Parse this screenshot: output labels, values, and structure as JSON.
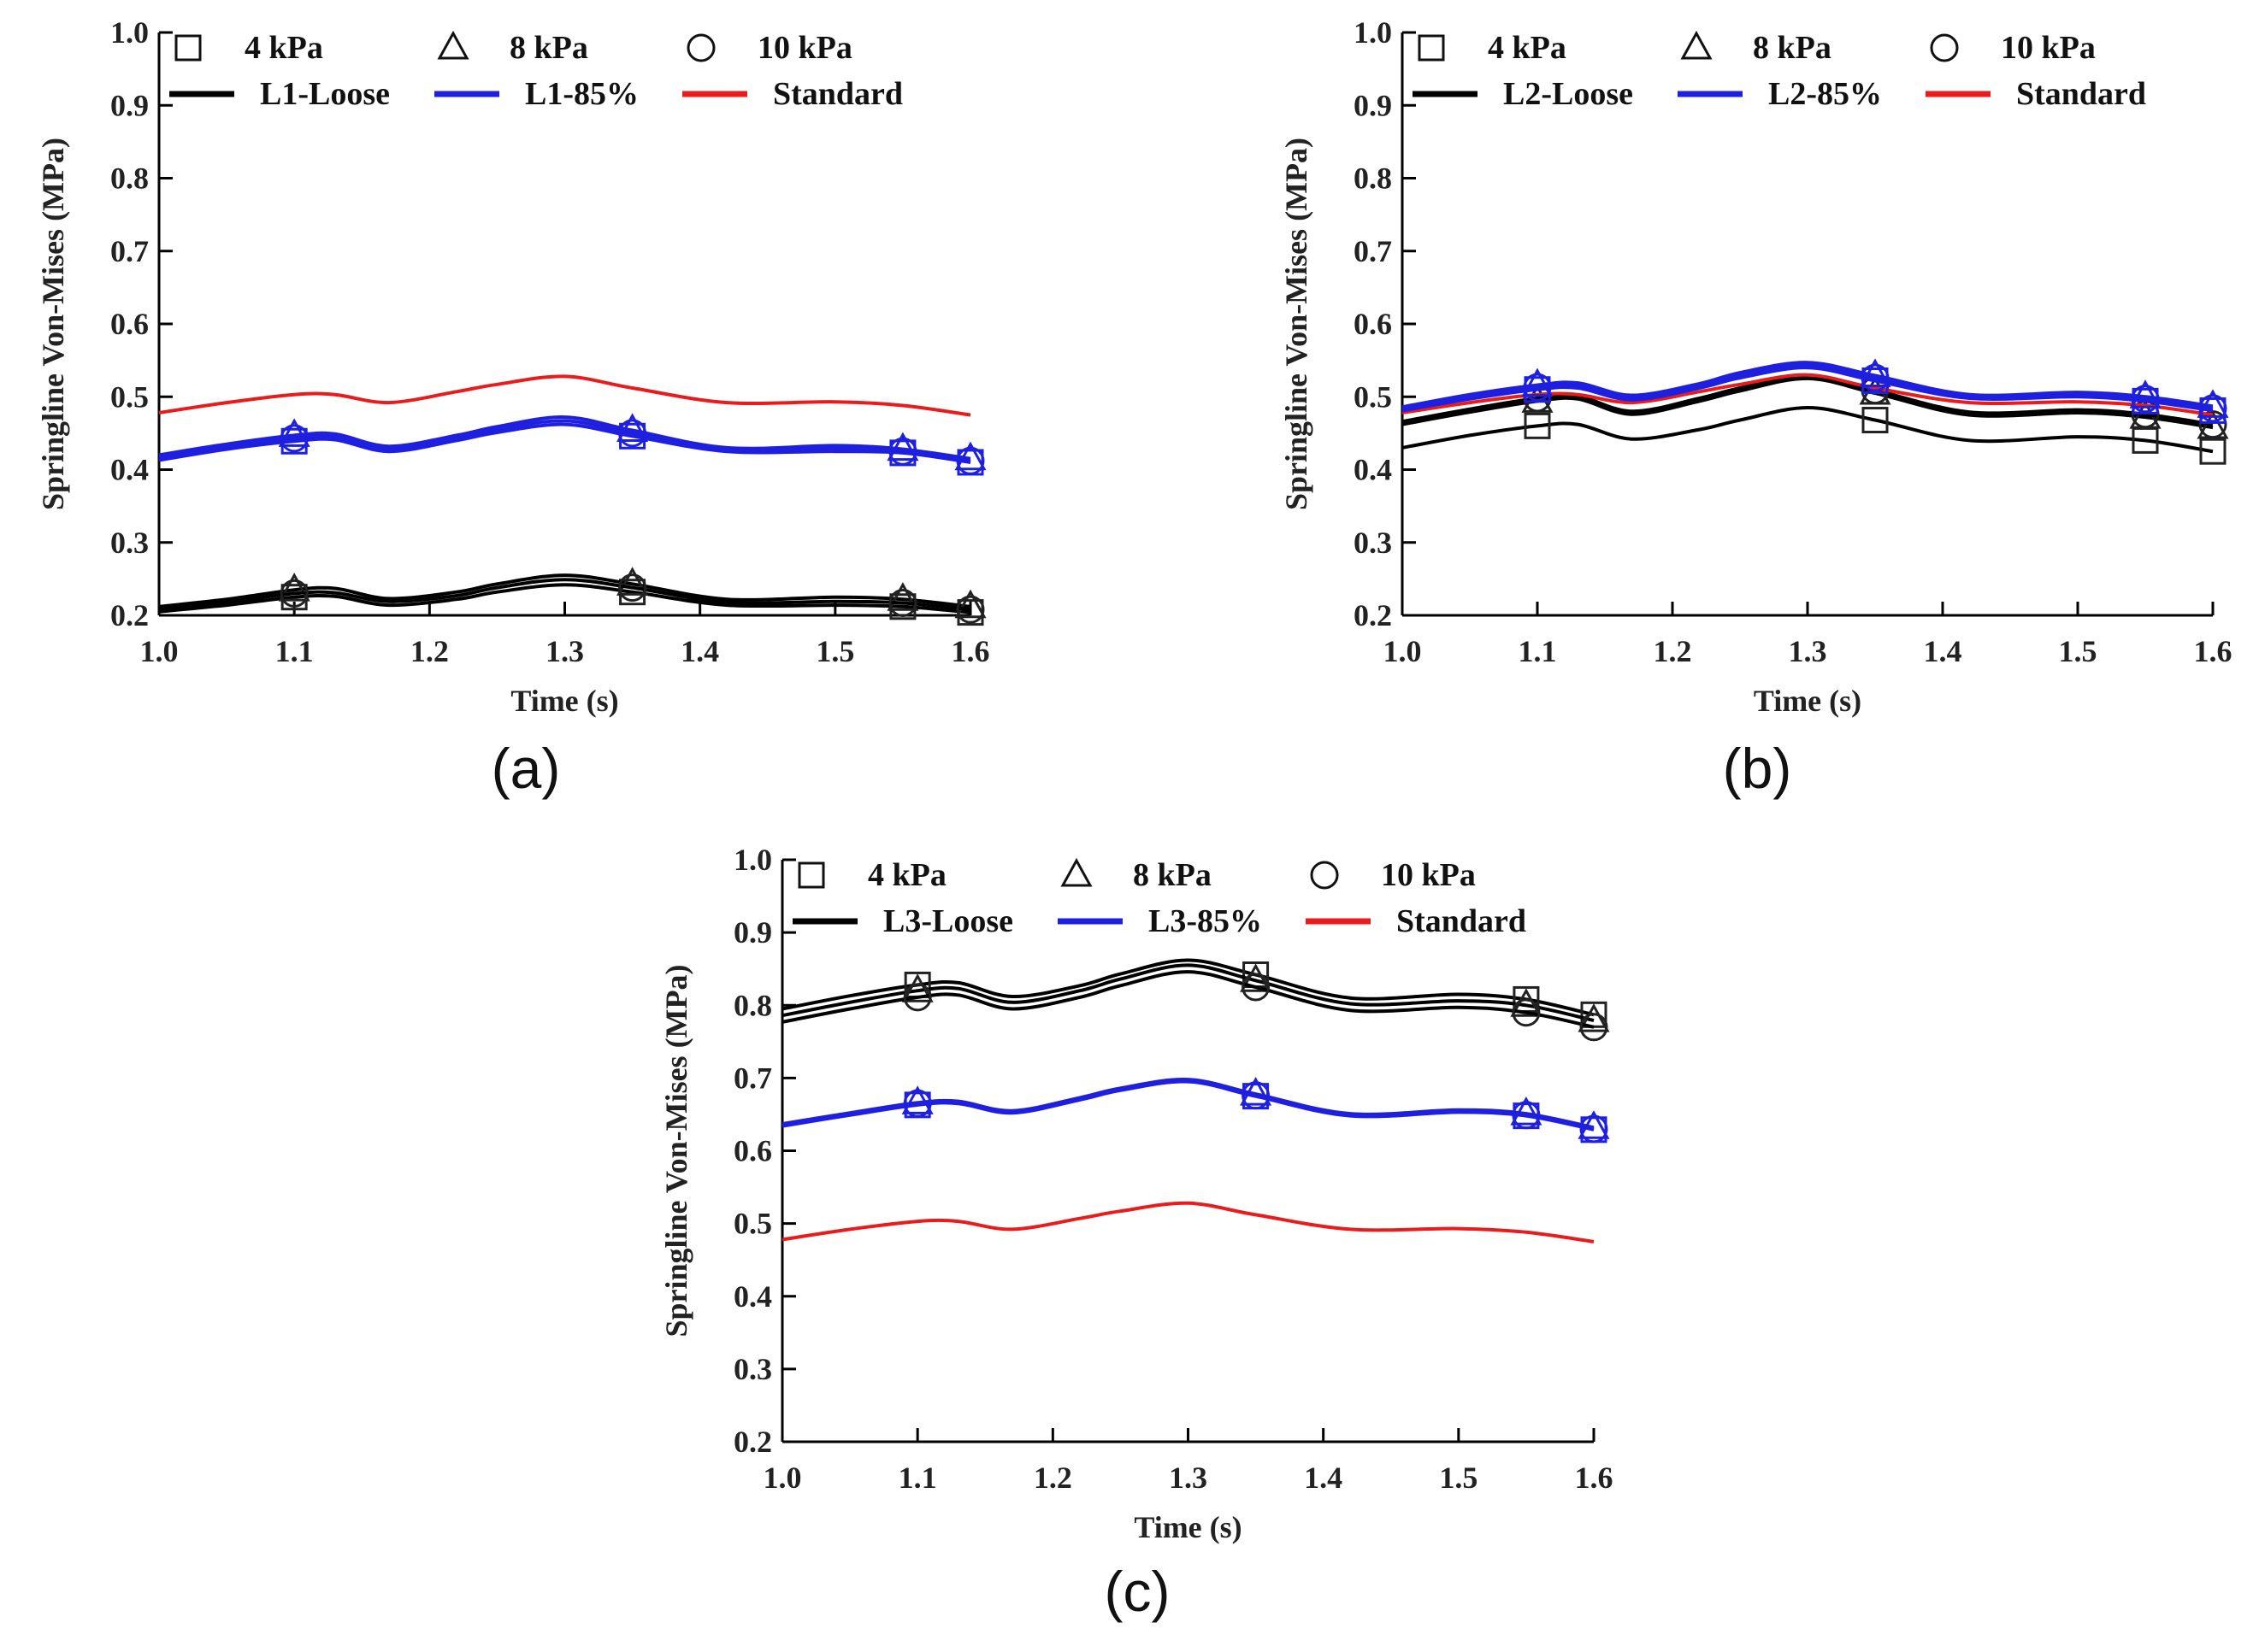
{
  "colors": {
    "loose": "#000000",
    "compacted": "#1f1fe0",
    "standard": "#e81c1c",
    "marker_black": "#222222"
  },
  "chart_data": [
    {
      "type": "line",
      "panel_label": "(a)",
      "xlabel": "Time (s)",
      "ylabel": "Springline Von-Mises (MPa)",
      "xlim": [
        1.0,
        1.6
      ],
      "ylim": [
        0.2,
        1.0
      ],
      "x_ticks": [
        "1.0",
        "1.1",
        "1.2",
        "1.3",
        "1.4",
        "1.5",
        "1.6"
      ],
      "y_ticks": [
        "0.2",
        "0.3",
        "0.4",
        "0.5",
        "0.6",
        "0.7",
        "0.8",
        "0.9",
        "1.0"
      ],
      "legend_markers": [
        {
          "symbol": "square",
          "label": "4 kPa"
        },
        {
          "symbol": "triangle",
          "label": "8 kPa"
        },
        {
          "symbol": "circle",
          "label": "10 kPa"
        }
      ],
      "legend_lines": [
        {
          "color_key": "loose",
          "label": "L1-Loose"
        },
        {
          "color_key": "compacted",
          "label": "L1-85%"
        },
        {
          "color_key": "standard",
          "label": "Standard"
        }
      ],
      "x": [
        1.0,
        1.05,
        1.1,
        1.13,
        1.17,
        1.22,
        1.25,
        1.3,
        1.35,
        1.42,
        1.5,
        1.55,
        1.6
      ],
      "series": [
        {
          "name": "Standard",
          "color_key": "standard",
          "marker": "none",
          "values": [
            0.478,
            0.492,
            0.503,
            0.503,
            0.492,
            0.507,
            0.517,
            0.528,
            0.512,
            0.492,
            0.493,
            0.488,
            0.475
          ]
        },
        {
          "name": "L1-85%",
          "color_key": "compacted",
          "marker": "square",
          "values": [
            0.413,
            0.428,
            0.439,
            0.441,
            0.425,
            0.44,
            0.451,
            0.462,
            0.446,
            0.425,
            0.425,
            0.423,
            0.41
          ]
        },
        {
          "name": "L1-85%",
          "color_key": "compacted",
          "marker": "triangle",
          "values": [
            0.42,
            0.435,
            0.447,
            0.449,
            0.432,
            0.447,
            0.459,
            0.472,
            0.454,
            0.43,
            0.433,
            0.428,
            0.415
          ]
        },
        {
          "name": "L1-85%",
          "color_key": "compacted",
          "marker": "circle",
          "values": [
            0.417,
            0.432,
            0.443,
            0.445,
            0.428,
            0.443,
            0.455,
            0.467,
            0.45,
            0.427,
            0.429,
            0.425,
            0.412
          ]
        },
        {
          "name": "L1-Loose",
          "color_key": "loose",
          "marker": "square",
          "values": [
            0.205,
            0.214,
            0.225,
            0.226,
            0.214,
            0.222,
            0.232,
            0.242,
            0.232,
            0.214,
            0.214,
            0.212,
            0.204
          ]
        },
        {
          "name": "L1-Loose",
          "color_key": "loose",
          "marker": "triangle",
          "values": [
            0.212,
            0.222,
            0.235,
            0.237,
            0.223,
            0.232,
            0.243,
            0.255,
            0.243,
            0.222,
            0.225,
            0.222,
            0.212
          ]
        },
        {
          "name": "L1-Loose",
          "color_key": "loose",
          "marker": "circle",
          "values": [
            0.209,
            0.218,
            0.23,
            0.231,
            0.219,
            0.227,
            0.238,
            0.249,
            0.238,
            0.218,
            0.219,
            0.217,
            0.208
          ]
        }
      ]
    },
    {
      "type": "line",
      "panel_label": "(b)",
      "xlabel": "Time (s)",
      "ylabel": "Springline Von-Mises (MPa)",
      "xlim": [
        1.0,
        1.6
      ],
      "ylim": [
        0.2,
        1.0
      ],
      "x_ticks": [
        "1.0",
        "1.1",
        "1.2",
        "1.3",
        "1.4",
        "1.5",
        "1.6"
      ],
      "y_ticks": [
        "0.2",
        "0.3",
        "0.4",
        "0.5",
        "0.6",
        "0.7",
        "0.8",
        "0.9",
        "1.0"
      ],
      "legend_markers": [
        {
          "symbol": "square",
          "label": "4 kPa"
        },
        {
          "symbol": "triangle",
          "label": "8 kPa"
        },
        {
          "symbol": "circle",
          "label": "10 kPa"
        }
      ],
      "legend_lines": [
        {
          "color_key": "loose",
          "label": "L2-Loose"
        },
        {
          "color_key": "compacted",
          "label": "L2-85%"
        },
        {
          "color_key": "standard",
          "label": "Standard"
        }
      ],
      "x": [
        1.0,
        1.05,
        1.1,
        1.13,
        1.17,
        1.22,
        1.25,
        1.3,
        1.35,
        1.42,
        1.5,
        1.55,
        1.6
      ],
      "series": [
        {
          "name": "L2-Loose",
          "color_key": "loose",
          "marker": "square",
          "values": [
            0.43,
            0.447,
            0.46,
            0.462,
            0.442,
            0.455,
            0.468,
            0.485,
            0.468,
            0.44,
            0.445,
            0.44,
            0.425
          ]
        },
        {
          "name": "L2-Loose",
          "color_key": "loose",
          "marker": "triangle",
          "values": [
            0.462,
            0.479,
            0.494,
            0.497,
            0.476,
            0.494,
            0.508,
            0.525,
            0.505,
            0.475,
            0.478,
            0.472,
            0.458
          ]
        },
        {
          "name": "L2-Loose",
          "color_key": "loose",
          "marker": "circle",
          "values": [
            0.466,
            0.483,
            0.498,
            0.501,
            0.48,
            0.498,
            0.512,
            0.529,
            0.509,
            0.479,
            0.482,
            0.476,
            0.462
          ]
        },
        {
          "name": "Standard",
          "color_key": "standard",
          "marker": "none",
          "values": [
            0.478,
            0.492,
            0.503,
            0.503,
            0.492,
            0.507,
            0.517,
            0.53,
            0.512,
            0.492,
            0.493,
            0.488,
            0.475
          ]
        },
        {
          "name": "L2-85%",
          "color_key": "compacted",
          "marker": "square",
          "values": [
            0.481,
            0.497,
            0.51,
            0.512,
            0.496,
            0.512,
            0.526,
            0.54,
            0.522,
            0.498,
            0.5,
            0.494,
            0.481
          ]
        },
        {
          "name": "L2-85%",
          "color_key": "compacted",
          "marker": "triangle",
          "values": [
            0.486,
            0.503,
            0.516,
            0.519,
            0.502,
            0.518,
            0.533,
            0.547,
            0.529,
            0.503,
            0.506,
            0.5,
            0.487
          ]
        },
        {
          "name": "L2-85%",
          "color_key": "compacted",
          "marker": "circle",
          "values": [
            0.484,
            0.5,
            0.513,
            0.516,
            0.499,
            0.515,
            0.53,
            0.544,
            0.526,
            0.5,
            0.503,
            0.497,
            0.484
          ]
        }
      ]
    },
    {
      "type": "line",
      "panel_label": "(c)",
      "xlabel": "Time (s)",
      "ylabel": "Springline Von-Mises (MPa)",
      "xlim": [
        1.0,
        1.6
      ],
      "ylim": [
        0.2,
        1.0
      ],
      "x_ticks": [
        "1.0",
        "1.1",
        "1.2",
        "1.3",
        "1.4",
        "1.5",
        "1.6"
      ],
      "y_ticks": [
        "0.2",
        "0.3",
        "0.4",
        "0.5",
        "0.6",
        "0.7",
        "0.8",
        "0.9",
        "1.0"
      ],
      "legend_markers": [
        {
          "symbol": "square",
          "label": "4 kPa"
        },
        {
          "symbol": "triangle",
          "label": "8 kPa"
        },
        {
          "symbol": "circle",
          "label": "10 kPa"
        }
      ],
      "legend_lines": [
        {
          "color_key": "loose",
          "label": "L3-Loose"
        },
        {
          "color_key": "compacted",
          "label": "L3-85%"
        },
        {
          "color_key": "standard",
          "label": "Standard"
        }
      ],
      "x": [
        1.0,
        1.05,
        1.1,
        1.13,
        1.17,
        1.22,
        1.25,
        1.3,
        1.35,
        1.42,
        1.5,
        1.55,
        1.6
      ],
      "series": [
        {
          "name": "L3-Loose",
          "color_key": "loose",
          "marker": "square",
          "values": [
            0.795,
            0.813,
            0.828,
            0.831,
            0.812,
            0.827,
            0.843,
            0.862,
            0.842,
            0.81,
            0.815,
            0.808,
            0.787
          ]
        },
        {
          "name": "L3-Loose",
          "color_key": "loose",
          "marker": "triangle",
          "values": [
            0.786,
            0.804,
            0.82,
            0.823,
            0.804,
            0.82,
            0.836,
            0.855,
            0.834,
            0.802,
            0.806,
            0.8,
            0.779
          ]
        },
        {
          "name": "L3-Loose",
          "color_key": "loose",
          "marker": "circle",
          "values": [
            0.777,
            0.795,
            0.811,
            0.814,
            0.795,
            0.811,
            0.827,
            0.846,
            0.825,
            0.793,
            0.797,
            0.79,
            0.77
          ]
        },
        {
          "name": "L3-85%",
          "color_key": "compacted",
          "marker": "square",
          "values": [
            0.634,
            0.649,
            0.663,
            0.665,
            0.652,
            0.67,
            0.683,
            0.695,
            0.675,
            0.648,
            0.653,
            0.648,
            0.629
          ]
        },
        {
          "name": "L3-85%",
          "color_key": "compacted",
          "marker": "triangle",
          "values": [
            0.637,
            0.652,
            0.666,
            0.668,
            0.655,
            0.673,
            0.686,
            0.698,
            0.678,
            0.651,
            0.656,
            0.651,
            0.632
          ]
        },
        {
          "name": "L3-85%",
          "color_key": "compacted",
          "marker": "circle",
          "values": [
            0.635,
            0.651,
            0.665,
            0.667,
            0.653,
            0.671,
            0.684,
            0.696,
            0.676,
            0.649,
            0.654,
            0.649,
            0.63
          ]
        },
        {
          "name": "Standard",
          "color_key": "standard",
          "marker": "none",
          "values": [
            0.478,
            0.492,
            0.503,
            0.503,
            0.492,
            0.507,
            0.517,
            0.528,
            0.512,
            0.492,
            0.493,
            0.488,
            0.475
          ]
        }
      ]
    }
  ]
}
